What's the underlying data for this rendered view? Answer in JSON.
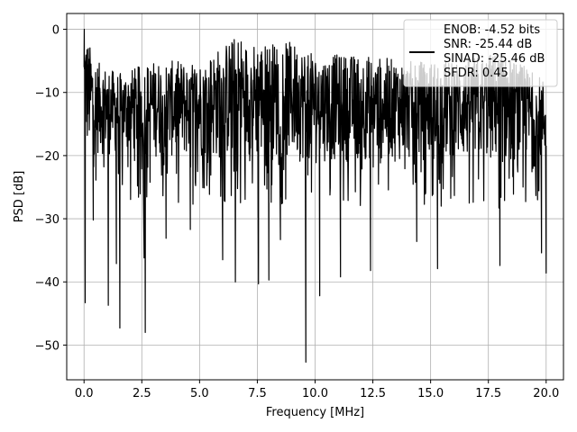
{
  "chart_data": {
    "type": "line",
    "title": "",
    "xlabel": "Frequency [MHz]",
    "ylabel": "PSD [dB]",
    "xlim": [
      -0.75,
      20.75
    ],
    "ylim": [
      -55.5,
      2.5
    ],
    "xticks": [
      0.0,
      2.5,
      5.0,
      7.5,
      10.0,
      12.5,
      15.0,
      17.5,
      20.0
    ],
    "xtick_labels": [
      "0.0",
      "2.5",
      "5.0",
      "7.5",
      "10.0",
      "12.5",
      "15.0",
      "17.5",
      "20.0"
    ],
    "yticks": [
      0,
      -10,
      -20,
      -30,
      -40,
      -50
    ],
    "ytick_labels": [
      "0",
      "−10",
      "−20",
      "−30",
      "−40",
      "−50"
    ],
    "grid": true,
    "legend_position": "top-right",
    "legend_lines": [
      "ENOB: -4.52 bits",
      "SNR: -25.44 dB",
      "SINAD: -25.46 dB",
      "SFDR: 0.45"
    ],
    "series": [
      {
        "color": "#000000",
        "band_upper_envelope": [
          [
            0.0,
            0
          ],
          [
            0.5,
            -5
          ],
          [
            1.5,
            -7
          ],
          [
            3.0,
            -5
          ],
          [
            5.0,
            -5
          ],
          [
            6.7,
            -0.7
          ],
          [
            7.0,
            -2
          ],
          [
            9.0,
            -2
          ],
          [
            10.0,
            -4
          ],
          [
            12.0,
            -4
          ],
          [
            14.0,
            -5
          ],
          [
            16.0,
            -5
          ],
          [
            18.0,
            -3.5
          ],
          [
            20.0,
            -8
          ]
        ],
        "band_lower_envelope": [
          [
            0.0,
            -20
          ],
          [
            2.0,
            -20
          ],
          [
            5.0,
            -21
          ],
          [
            10.0,
            -21
          ],
          [
            15.0,
            -21
          ],
          [
            20.0,
            -22
          ]
        ],
        "deep_dips": [
          [
            0.05,
            -43.3
          ],
          [
            0.4,
            -30.2
          ],
          [
            1.05,
            -43.7
          ],
          [
            1.4,
            -37.1
          ],
          [
            1.55,
            -47.3
          ],
          [
            2.65,
            -48.0
          ],
          [
            2.6,
            -36.2
          ],
          [
            3.55,
            -33.1
          ],
          [
            4.6,
            -31.7
          ],
          [
            6.0,
            -36.5
          ],
          [
            6.55,
            -40.0
          ],
          [
            7.55,
            -40.3
          ],
          [
            8.0,
            -39.7
          ],
          [
            8.5,
            -33.3
          ],
          [
            9.6,
            -52.7
          ],
          [
            10.2,
            -42.2
          ],
          [
            11.1,
            -39.2
          ],
          [
            12.4,
            -38.2
          ],
          [
            14.4,
            -33.6
          ],
          [
            15.3,
            -37.9
          ],
          [
            18.0,
            -37.4
          ],
          [
            19.8,
            -35.4
          ],
          [
            20.0,
            -38.6
          ]
        ]
      }
    ]
  }
}
